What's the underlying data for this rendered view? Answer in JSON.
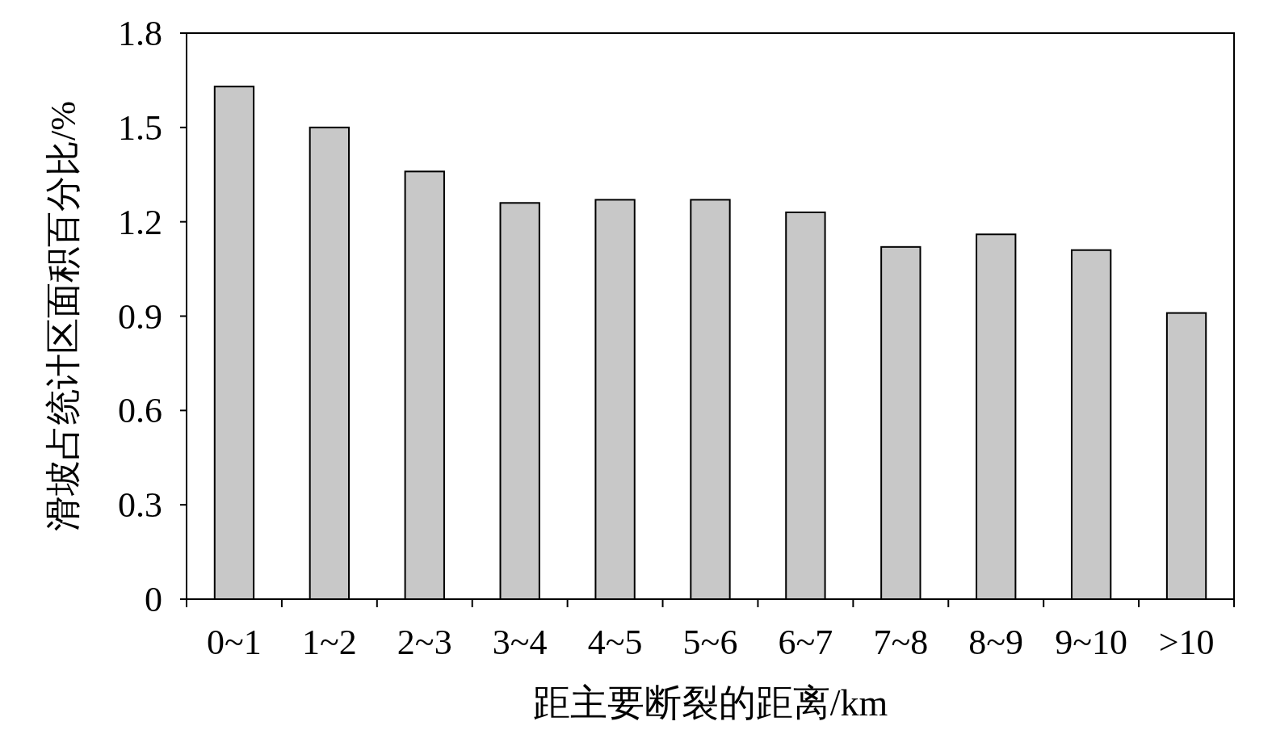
{
  "chart_data": {
    "type": "bar",
    "xlabel": "距主要断裂的距离/km",
    "ylabel": "滑坡占统计区面积百分比/%",
    "categories": [
      "0~1",
      "1~2",
      "2~3",
      "3~4",
      "4~5",
      "5~6",
      "6~7",
      "7~8",
      "8~9",
      "9~10",
      ">10"
    ],
    "values": [
      1.63,
      1.5,
      1.36,
      1.26,
      1.27,
      1.27,
      1.23,
      1.12,
      1.16,
      1.11,
      0.91
    ],
    "color": "#c8c8c8",
    "ylim": [
      0,
      1.8
    ],
    "yticks": [
      0,
      0.3,
      0.6,
      0.9,
      1.2,
      1.5,
      1.8
    ]
  }
}
